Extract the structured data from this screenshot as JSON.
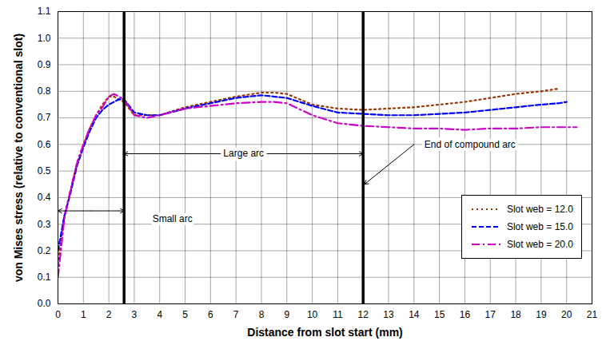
{
  "chart_data": {
    "type": "line",
    "x_label": "Distance from slot start (mm)",
    "y_label": "von Mises stress (relative to conventional slot)",
    "x": [
      0,
      0.25,
      0.5,
      0.75,
      1,
      1.25,
      1.5,
      1.75,
      2,
      2.2,
      2.4,
      2.6,
      3,
      3.5,
      4,
      5,
      6,
      7,
      8,
      8.5,
      9,
      10,
      11,
      12,
      13,
      14,
      15,
      16,
      17,
      18,
      19,
      19.7,
      20,
      20.4
    ],
    "series": [
      {
        "name": "Slot web = 12.0",
        "color": "#993300",
        "line_style": "dotted",
        "values": [
          0.15,
          0.33,
          0.43,
          0.53,
          0.6,
          0.66,
          0.71,
          0.75,
          0.78,
          0.78,
          0.77,
          0.76,
          0.71,
          0.71,
          0.71,
          0.74,
          0.76,
          0.78,
          0.795,
          0.795,
          0.79,
          0.75,
          0.735,
          0.73,
          0.735,
          0.74,
          0.75,
          0.76,
          0.775,
          0.79,
          0.8,
          0.81,
          null,
          null
        ]
      },
      {
        "name": "Slot web = 15.0",
        "color": "#0000ff",
        "line_style": "dashed",
        "values": [
          0.2,
          0.33,
          0.42,
          0.52,
          0.59,
          0.65,
          0.7,
          0.73,
          0.75,
          0.76,
          0.77,
          0.77,
          0.72,
          0.71,
          0.71,
          0.735,
          0.755,
          0.775,
          0.785,
          0.78,
          0.775,
          0.745,
          0.72,
          0.715,
          0.71,
          0.71,
          0.715,
          0.72,
          0.73,
          0.74,
          0.75,
          0.755,
          0.76,
          null
        ]
      },
      {
        "name": "Slot web = 20.0",
        "color": "#cc00cc",
        "line_style": "dashdot",
        "values": [
          0.1,
          0.32,
          0.43,
          0.53,
          0.6,
          0.66,
          0.71,
          0.74,
          0.78,
          0.79,
          0.78,
          0.77,
          0.71,
          0.7,
          0.71,
          0.735,
          0.745,
          0.755,
          0.76,
          0.76,
          0.755,
          0.71,
          0.68,
          0.67,
          0.665,
          0.66,
          0.66,
          0.655,
          0.66,
          0.66,
          0.665,
          0.665,
          0.665,
          0.665
        ]
      }
    ],
    "xlim": [
      0,
      21
    ],
    "xticks": [
      0,
      1,
      2,
      3,
      4,
      5,
      6,
      7,
      8,
      9,
      10,
      11,
      12,
      13,
      14,
      15,
      16,
      17,
      18,
      19,
      20,
      21
    ],
    "ylim": [
      0,
      1.1
    ],
    "yticks": [
      {
        "value": 0,
        "label": "0.0"
      },
      0.1,
      0.2,
      0.3,
      0.4,
      0.5,
      0.6,
      0.7,
      0.8,
      0.9,
      {
        "value": 1,
        "label": "1.0"
      },
      1.1
    ],
    "grid": true,
    "legend": "lower right",
    "vertical_lines": [
      2.6,
      12
    ],
    "annotations": [
      {
        "text": "Small arc",
        "x": 4.5,
        "y": 0.32,
        "span": [
          0,
          2.6
        ],
        "span_y": 0.35
      },
      {
        "text": "Large arc",
        "x": 7.3,
        "y": 0.565,
        "span": [
          2.6,
          12
        ],
        "span_y": 0.565
      },
      {
        "text": "End of compound arc",
        "x": 16.2,
        "y": 0.6,
        "arrow_from": [
          14,
          0.6
        ],
        "arrow_to": [
          12.05,
          0.45
        ]
      }
    ]
  }
}
